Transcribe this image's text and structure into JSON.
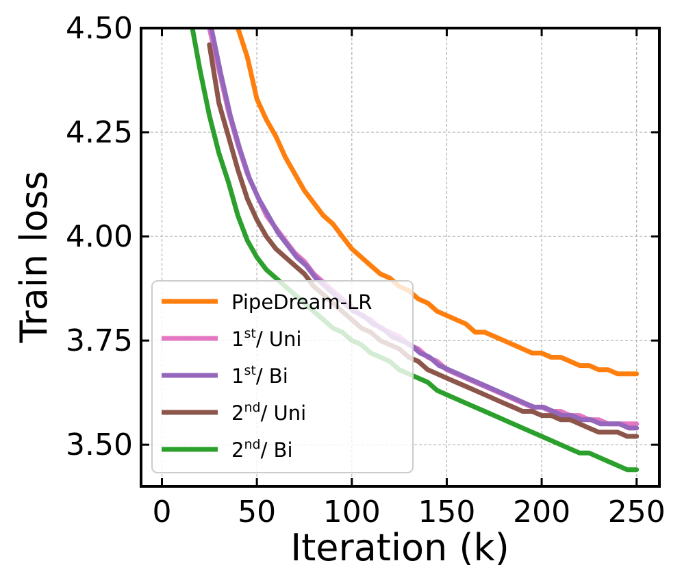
{
  "chart_data": {
    "type": "line",
    "title": "",
    "xlabel": "Iteration (k)",
    "ylabel": "Train loss",
    "xlim": [
      -11,
      262
    ],
    "ylim": [
      3.4,
      4.5
    ],
    "xticks": [
      0,
      50,
      100,
      150,
      200,
      250
    ],
    "xtick_labels": [
      "0",
      "50",
      "100",
      "150",
      "200",
      "250"
    ],
    "yticks": [
      3.5,
      3.75,
      4.0,
      4.25,
      4.5
    ],
    "ytick_labels": [
      "3.50",
      "3.75",
      "4.00",
      "4.25",
      "4.50"
    ],
    "grid": true,
    "legend_position": "lower-left",
    "series": [
      {
        "name": "PipeDream-LR",
        "legend_parts": [
          "PipeDream-LR"
        ],
        "color": "#ff7f0e",
        "x": [
          40,
          45,
          50,
          55,
          60,
          65,
          70,
          75,
          80,
          85,
          90,
          95,
          100,
          105,
          110,
          115,
          120,
          125,
          130,
          135,
          140,
          145,
          150,
          155,
          160,
          165,
          170,
          175,
          180,
          185,
          190,
          195,
          200,
          205,
          210,
          215,
          220,
          225,
          230,
          235,
          240,
          245,
          250
        ],
        "y": [
          4.5,
          4.43,
          4.33,
          4.28,
          4.24,
          4.19,
          4.15,
          4.11,
          4.08,
          4.05,
          4.03,
          4.0,
          3.97,
          3.95,
          3.93,
          3.91,
          3.9,
          3.88,
          3.87,
          3.85,
          3.84,
          3.82,
          3.81,
          3.8,
          3.79,
          3.77,
          3.77,
          3.76,
          3.75,
          3.74,
          3.73,
          3.72,
          3.72,
          3.71,
          3.71,
          3.7,
          3.69,
          3.69,
          3.68,
          3.68,
          3.67,
          3.67,
          3.67
        ]
      },
      {
        "name": "1st/ Uni",
        "legend_parts": [
          "1",
          "st",
          "/ Uni"
        ],
        "color": "#e377c2",
        "x": [
          25,
          30,
          35,
          40,
          45,
          50,
          55,
          60,
          65,
          70,
          75,
          80,
          85,
          90,
          95,
          100,
          105,
          110,
          115,
          120,
          125,
          130,
          135,
          140,
          145,
          150,
          155,
          160,
          165,
          170,
          175,
          180,
          185,
          190,
          195,
          200,
          205,
          210,
          215,
          220,
          225,
          230,
          235,
          240,
          245,
          250
        ],
        "y": [
          4.5,
          4.4,
          4.3,
          4.22,
          4.15,
          4.1,
          4.05,
          4.02,
          3.99,
          3.96,
          3.94,
          3.91,
          3.89,
          3.87,
          3.85,
          3.83,
          3.81,
          3.8,
          3.78,
          3.77,
          3.76,
          3.74,
          3.73,
          3.71,
          3.7,
          3.68,
          3.67,
          3.66,
          3.65,
          3.64,
          3.63,
          3.62,
          3.61,
          3.6,
          3.59,
          3.59,
          3.58,
          3.58,
          3.57,
          3.57,
          3.56,
          3.56,
          3.55,
          3.55,
          3.55,
          3.55
        ]
      },
      {
        "name": "1st/ Bi",
        "legend_parts": [
          "1",
          "st",
          "/ Bi"
        ],
        "color": "#9467bd",
        "x": [
          26,
          31,
          36,
          41,
          46,
          51,
          56,
          61,
          66,
          71,
          76,
          81,
          86,
          91,
          96,
          101,
          106,
          111,
          116,
          121,
          126,
          131,
          136,
          141,
          146,
          151,
          156,
          161,
          166,
          171,
          176,
          181,
          186,
          191,
          196,
          201,
          206,
          211,
          216,
          221,
          226,
          231,
          236,
          241,
          246,
          250
        ],
        "y": [
          4.5,
          4.39,
          4.29,
          4.21,
          4.14,
          4.09,
          4.05,
          4.01,
          3.98,
          3.95,
          3.93,
          3.9,
          3.88,
          3.86,
          3.84,
          3.82,
          3.81,
          3.79,
          3.78,
          3.76,
          3.75,
          3.74,
          3.72,
          3.71,
          3.69,
          3.68,
          3.67,
          3.66,
          3.65,
          3.64,
          3.63,
          3.62,
          3.61,
          3.6,
          3.59,
          3.59,
          3.58,
          3.57,
          3.57,
          3.56,
          3.56,
          3.55,
          3.55,
          3.55,
          3.54,
          3.54
        ]
      },
      {
        "name": "2nd/ Uni",
        "legend_parts": [
          "2",
          "nd",
          "/ Uni"
        ],
        "color": "#8c564b",
        "x": [
          25,
          30,
          35,
          40,
          45,
          50,
          55,
          60,
          65,
          70,
          75,
          80,
          85,
          90,
          95,
          100,
          105,
          110,
          115,
          120,
          125,
          130,
          135,
          140,
          145,
          150,
          155,
          160,
          165,
          170,
          175,
          180,
          185,
          190,
          195,
          200,
          205,
          210,
          215,
          220,
          225,
          230,
          235,
          240,
          245,
          250
        ],
        "y": [
          4.46,
          4.32,
          4.24,
          4.16,
          4.09,
          4.04,
          4.0,
          3.97,
          3.95,
          3.93,
          3.91,
          3.88,
          3.86,
          3.84,
          3.82,
          3.8,
          3.78,
          3.77,
          3.75,
          3.74,
          3.73,
          3.71,
          3.7,
          3.68,
          3.67,
          3.66,
          3.65,
          3.64,
          3.63,
          3.62,
          3.61,
          3.6,
          3.59,
          3.58,
          3.58,
          3.57,
          3.57,
          3.56,
          3.56,
          3.55,
          3.54,
          3.53,
          3.53,
          3.53,
          3.52,
          3.52
        ]
      },
      {
        "name": "2nd/ Bi",
        "legend_parts": [
          "2",
          "nd",
          "/ Bi"
        ],
        "color": "#2ca02c",
        "x": [
          16,
          20,
          25,
          30,
          35,
          40,
          45,
          50,
          55,
          60,
          65,
          70,
          75,
          80,
          85,
          90,
          95,
          100,
          105,
          110,
          115,
          120,
          125,
          130,
          135,
          140,
          145,
          150,
          155,
          160,
          165,
          170,
          175,
          180,
          185,
          190,
          195,
          200,
          205,
          210,
          215,
          220,
          225,
          230,
          235,
          240,
          245,
          250
        ],
        "y": [
          4.5,
          4.4,
          4.29,
          4.2,
          4.13,
          4.05,
          3.99,
          3.95,
          3.92,
          3.9,
          3.88,
          3.86,
          3.84,
          3.82,
          3.8,
          3.78,
          3.77,
          3.75,
          3.74,
          3.72,
          3.71,
          3.7,
          3.68,
          3.67,
          3.66,
          3.65,
          3.63,
          3.62,
          3.61,
          3.6,
          3.59,
          3.58,
          3.57,
          3.56,
          3.55,
          3.54,
          3.53,
          3.52,
          3.51,
          3.5,
          3.49,
          3.48,
          3.48,
          3.47,
          3.46,
          3.45,
          3.44,
          3.44
        ]
      }
    ]
  }
}
